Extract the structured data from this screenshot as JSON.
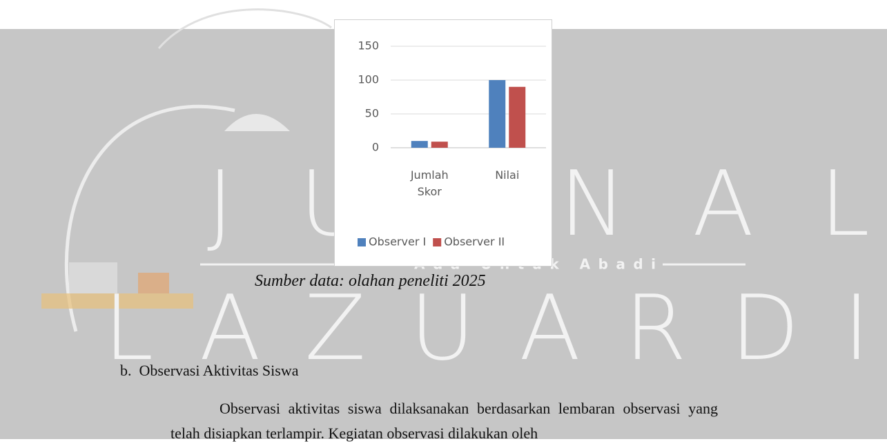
{
  "chart_data": {
    "type": "bar",
    "categories": [
      "Jumlah Skor",
      "Nilai"
    ],
    "series": [
      {
        "name": "Observer I",
        "color": "#4f81bd",
        "values": [
          10,
          100
        ]
      },
      {
        "name": "Observer II",
        "color": "#c0504d",
        "values": [
          9,
          90
        ]
      }
    ],
    "ylim": [
      0,
      150
    ],
    "yticks": [
      0,
      50,
      100,
      150
    ],
    "grid": true,
    "legend": "bottom"
  },
  "watermark": {
    "title": "JURNAL",
    "name": "LAZUARDI",
    "tagline": "Ada Untuk Abadi"
  },
  "caption": "Sumber data: olahan peneliti 2025",
  "section": {
    "heading": "b.  Observasi Aktivitas Siswa",
    "paragraph": "Observasi aktivitas siswa dilaksanakan berdasarkan lembaran observasi yang telah disiapkan terlampir. Kegiatan observasi dilakukan oleh"
  }
}
